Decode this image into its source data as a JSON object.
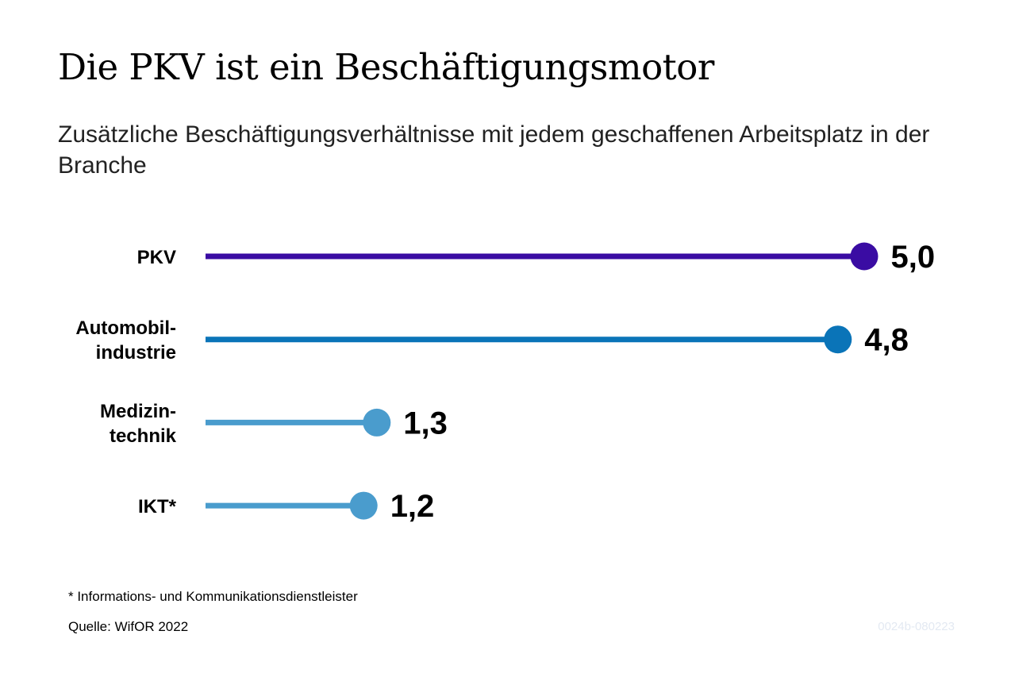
{
  "title": "Die PKV ist ein Beschäftigungsmotor",
  "subtitle": "Zusätzliche Beschäftigungsverhältnisse mit jedem geschaffenen Arbeitsplatz in der Branche",
  "footnote": "* Informations- und Kommunikationsdienstleister",
  "source": "Quelle: WifOR 2022",
  "code": "0024b-080223",
  "chart_data": {
    "type": "lollipop",
    "title": "Die PKV ist ein Beschäftigungsmotor",
    "subtitle": "Zusätzliche Beschäftigungsverhältnisse mit jedem geschaffenen Arbeitsplatz in der Branche",
    "orientation": "horizontal",
    "xlim": [
      0,
      5
    ],
    "grid": false,
    "legend": "none",
    "categories": [
      [
        "PKV"
      ],
      [
        "Automobil-",
        "industrie"
      ],
      [
        "Medizin-",
        "technik"
      ],
      [
        "IKT*"
      ]
    ],
    "values": [
      5.0,
      4.8,
      1.3,
      1.2
    ],
    "value_labels": [
      "5,0",
      "4,8",
      "1,3",
      "1,2"
    ],
    "colors": [
      "#3a0ca3",
      "#0a74b8",
      "#4a9ccd",
      "#4a9ccd"
    ]
  }
}
